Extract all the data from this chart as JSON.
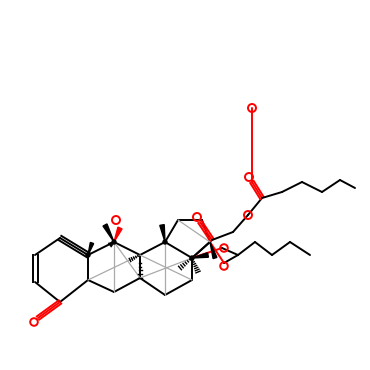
{
  "bg": "#ffffff",
  "bk": "#000000",
  "rd": "#ff0000",
  "gy": "#aaaaaa",
  "lw": 1.4
}
